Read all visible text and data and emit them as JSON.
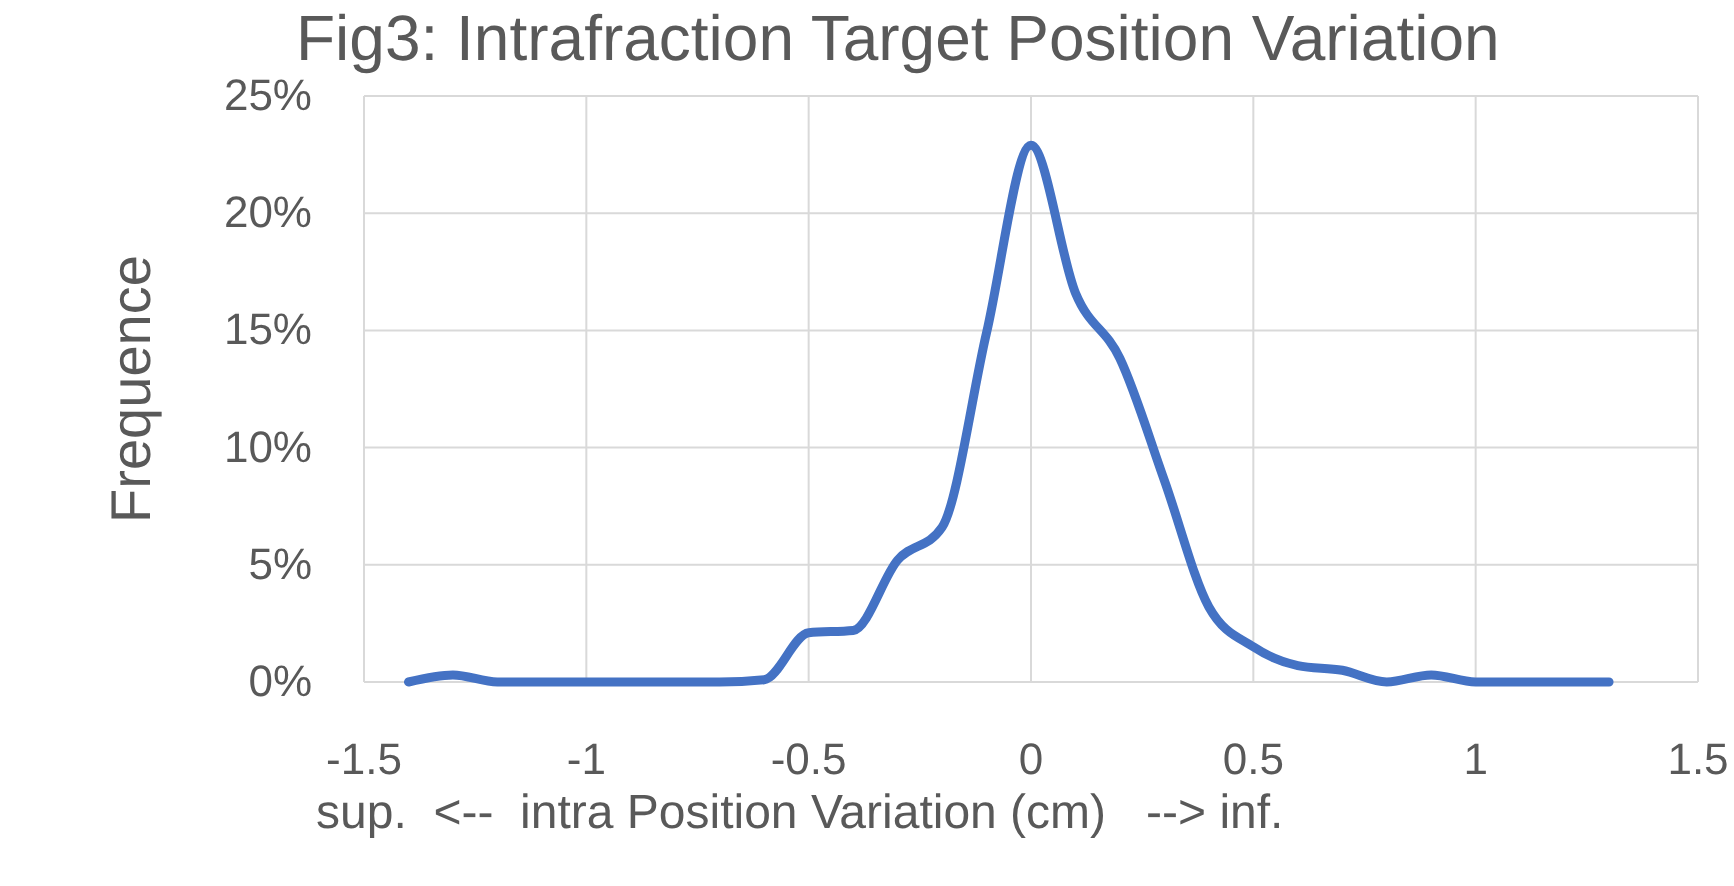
{
  "chart_data": {
    "type": "line",
    "title": "Fig3: Intrafraction Target Position Variation",
    "xlabel": "sup.  <--  intra Position Variation (cm)   --> inf.",
    "ylabel": "Frequence",
    "x": [
      -1.4,
      -1.3,
      -1.2,
      -1.1,
      -1,
      -0.9,
      -0.8,
      -0.7,
      -0.6,
      -0.5,
      -0.4,
      -0.3,
      -0.2,
      -0.1,
      0,
      0.1,
      0.2,
      0.3,
      0.4,
      0.5,
      0.6,
      0.7,
      0.8,
      0.9,
      1,
      1.1,
      1.2,
      1.3
    ],
    "series": [
      {
        "color": "#4472c4",
        "values": [
          0,
          0.3,
          0,
          0,
          0,
          0,
          0,
          0,
          0.1,
          2.1,
          2.2,
          5.2,
          6.6,
          14.9,
          22.9,
          16.6,
          13.8,
          8.6,
          3.2,
          1.5,
          0.7,
          0.5,
          0,
          0.3,
          0,
          0,
          0,
          0
        ]
      }
    ],
    "xlim": [
      -1.5,
      1.5
    ],
    "xticks": [
      -1.5,
      -1,
      -0.5,
      0,
      0.5,
      1,
      1.5
    ],
    "ylim": [
      0,
      25
    ],
    "yticks": [
      {
        "value": 0,
        "label": "0%"
      },
      {
        "value": 5,
        "label": "5%"
      },
      {
        "value": 10,
        "label": "10%"
      },
      {
        "value": 15,
        "label": "15%"
      },
      {
        "value": 20,
        "label": "20%"
      },
      {
        "value": 25,
        "label": "25%"
      }
    ],
    "grid": true,
    "marker": "none",
    "line_style": "solid"
  }
}
